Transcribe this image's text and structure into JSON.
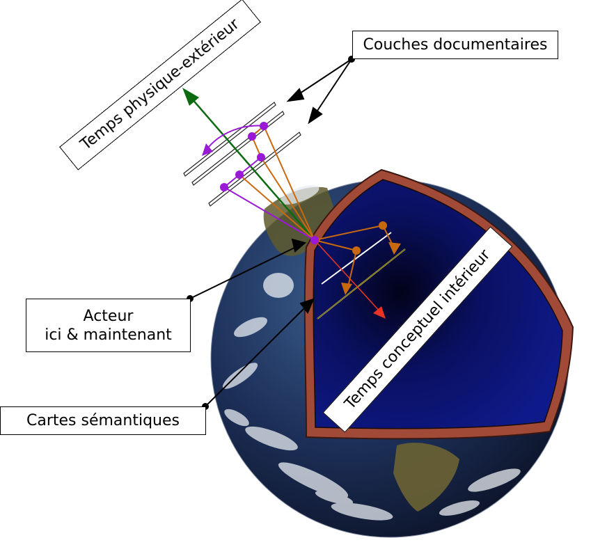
{
  "labels": {
    "couches": "Couches documentaires",
    "temps_physique": "Temps physique-extérieur",
    "acteur_line1": "Acteur",
    "acteur_line2": "ici & maintenant",
    "cartes": "Cartes sémantiques",
    "temps_conceptuel": "Temps conceptuel intérieur"
  },
  "colors": {
    "globe_ocean": "#1c2c52",
    "core_blue": "#0b1470",
    "crust": "#9b4a37",
    "green_arrow": "#0c6b10",
    "orange": "#c8690e",
    "purple": "#9a19d6",
    "red_arrow": "#e83323"
  }
}
